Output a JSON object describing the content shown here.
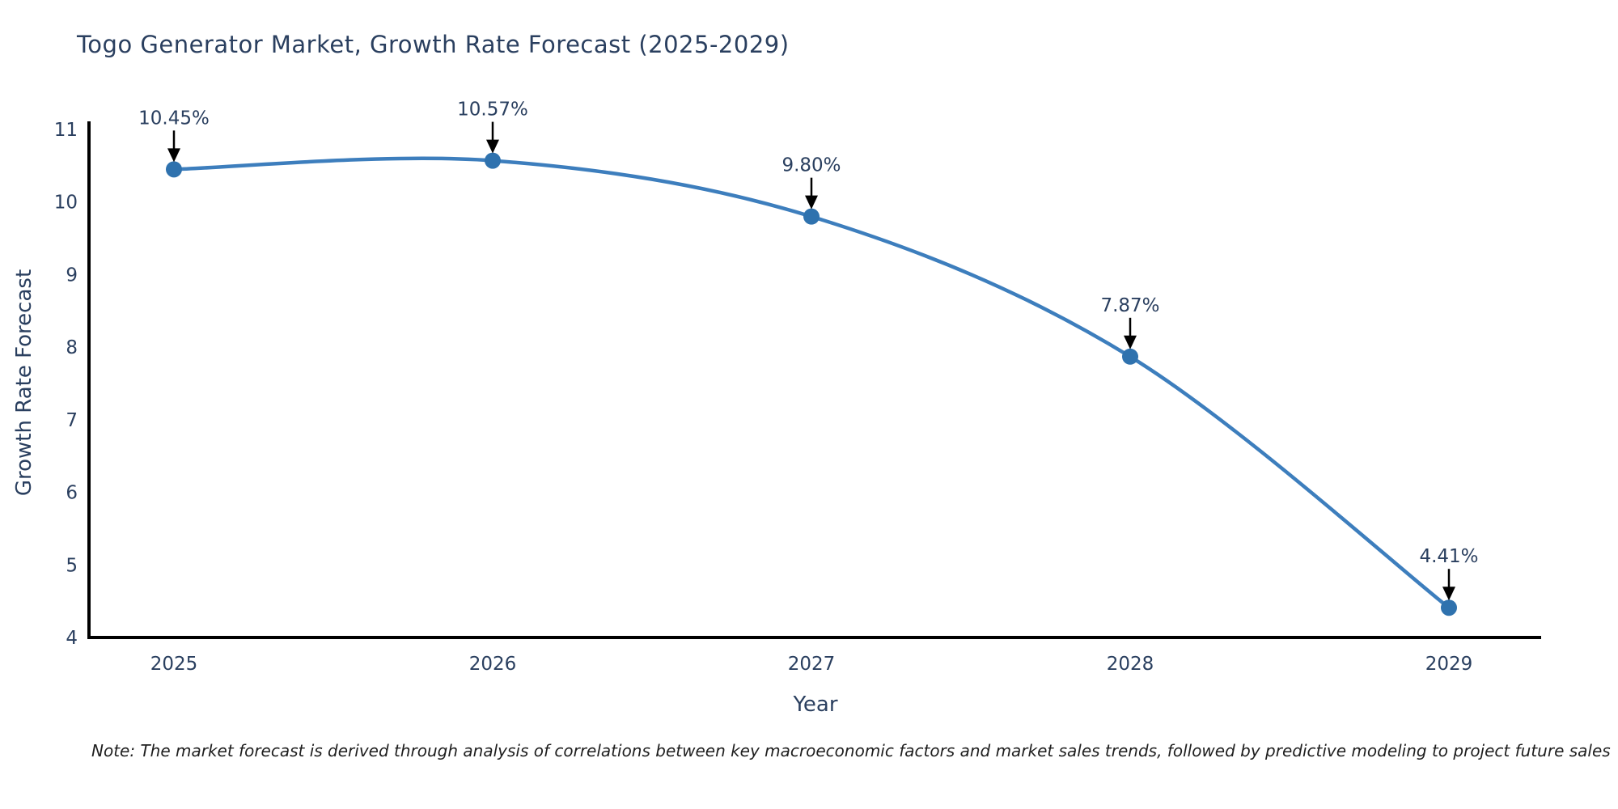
{
  "header": {
    "title": "Togo Generator Market, Growth Rate Forecast (2025-2029)"
  },
  "footnote": {
    "text": "Note: The market forecast is derived through analysis of correlations between key macroeconomic factors and market sales trends, followed by predictive modeling to project future sales"
  },
  "chart_data": {
    "type": "line",
    "title": "Togo Generator Market, Growth Rate Forecast (2025-2029)",
    "x": [
      2025,
      2026,
      2027,
      2028,
      2029
    ],
    "xticks": [
      "2025",
      "2026",
      "2027",
      "2028",
      "2029"
    ],
    "series": [
      {
        "name": "Growth Rate Forecast",
        "values": [
          10.45,
          10.57,
          9.8,
          7.87,
          4.41
        ]
      }
    ],
    "point_labels": [
      "10.45%",
      "10.57%",
      "9.80%",
      "7.87%",
      "4.41%"
    ],
    "xlabel": "Year",
    "ylabel": "Growth Rate Forecast",
    "ylim": [
      4,
      11
    ],
    "yticks": [
      4,
      5,
      6,
      7,
      8,
      9,
      10,
      11
    ],
    "grid": false,
    "legend_position": "none",
    "line_shape": "spline",
    "annotation_style": "label-with-down-arrow",
    "colors": {
      "line": "#3d7ebd",
      "marker": "#2f72ae",
      "axis": "#000000",
      "tick_text": "#2a3f5f",
      "annotation_text": "#2a3f5f",
      "arrow": "#000000"
    }
  }
}
